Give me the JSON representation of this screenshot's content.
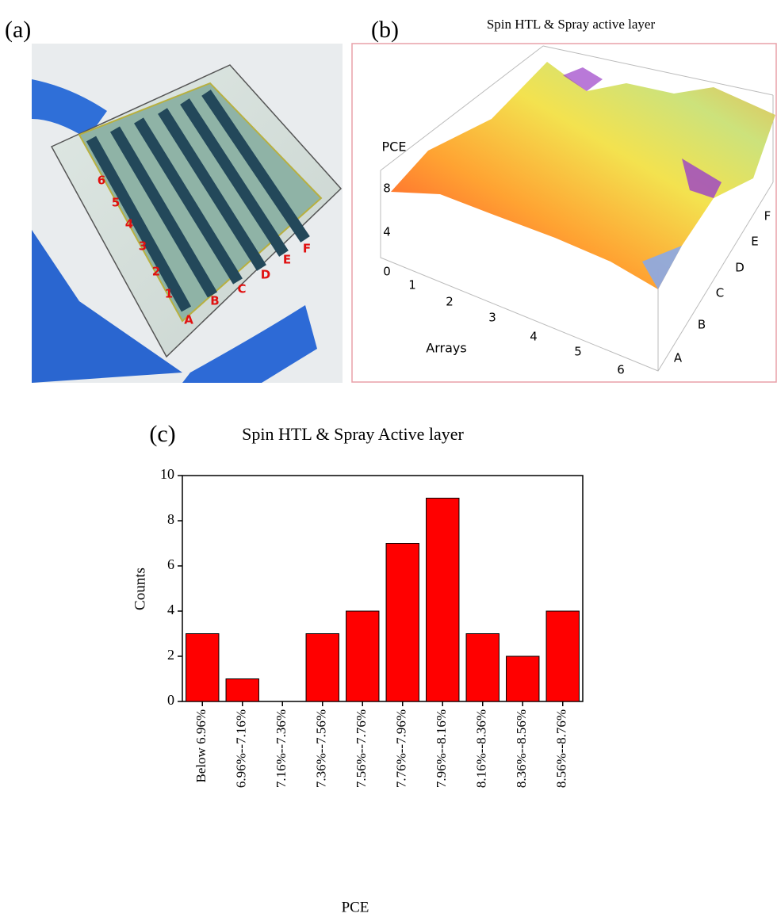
{
  "photo": {
    "label": "(a)",
    "row_labels": [
      "6",
      "5",
      "4",
      "3",
      "2",
      "1"
    ],
    "column_labels": [
      "A",
      "B",
      "C",
      "D",
      "E",
      "F"
    ]
  },
  "surface": {
    "label": "(b)",
    "title": "Spin HTL & Spray active layer",
    "z_label": "PCE",
    "z_ticks": [
      8,
      4,
      0
    ],
    "x_label": "Arrays",
    "x_ticks": [
      1,
      2,
      3,
      4,
      5,
      6
    ],
    "y_ticks": [
      "A",
      "B",
      "C",
      "D",
      "E",
      "F"
    ]
  },
  "chart_data": {
    "type": "bar",
    "label": "(c)",
    "title": "Spin HTL & Spray Active layer",
    "x_label": "PCE",
    "y_label": "Counts",
    "categories": [
      "Below 6.96%",
      "6.96%--7.16%",
      "7.16%--7.36%",
      "7.36%--7.56%",
      "7.56%--7.76%",
      "7.76%--7.96%",
      "7.96%--8.16%",
      "8.16%--8.36%",
      "8.36%--8.56%",
      "8.56%--8.76%"
    ],
    "values": [
      3,
      1,
      0,
      3,
      4,
      7,
      9,
      3,
      2,
      4
    ],
    "color": "#ff0000",
    "ylim": [
      0,
      10
    ],
    "yticks": [
      0,
      2,
      4,
      6,
      8,
      10
    ]
  }
}
